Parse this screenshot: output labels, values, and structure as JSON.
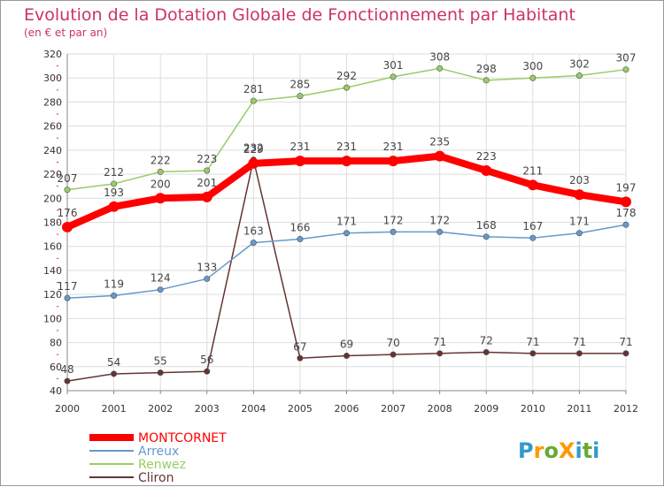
{
  "chart_data": {
    "type": "line",
    "title": "Evolution de la Dotation Globale de Fonctionnement par Habitant",
    "subtitle": "(en € et par an)",
    "x": [
      "2000",
      "2001",
      "2002",
      "2003",
      "2004",
      "2005",
      "2006",
      "2007",
      "2008",
      "2009",
      "2010",
      "2011",
      "2012"
    ],
    "ylim": [
      40,
      320
    ],
    "yticks": [
      40,
      60,
      80,
      100,
      120,
      140,
      160,
      180,
      200,
      220,
      240,
      260,
      280,
      300,
      320
    ],
    "grid": true,
    "legend_position": "bottom-left",
    "series": [
      {
        "name": "MONTCORNET",
        "color": "#ff0000",
        "values": [
          176,
          193,
          200,
          201,
          229,
          231,
          231,
          231,
          235,
          223,
          211,
          203,
          197
        ]
      },
      {
        "name": "Arreux",
        "color": "#6699cc",
        "values": [
          117,
          119,
          124,
          133,
          163,
          166,
          171,
          172,
          172,
          168,
          167,
          171,
          178
        ]
      },
      {
        "name": "Renwez",
        "color": "#99cc66",
        "values": [
          207,
          212,
          222,
          223,
          281,
          285,
          292,
          301,
          308,
          298,
          300,
          302,
          307
        ]
      },
      {
        "name": "Cliron",
        "color": "#663333",
        "values": [
          48,
          54,
          55,
          56,
          232,
          67,
          69,
          70,
          71,
          72,
          71,
          71,
          71
        ]
      }
    ]
  },
  "logo": {
    "text": "ProXiti",
    "letters": [
      "P",
      "r",
      "o",
      "X",
      "i",
      "t",
      "i"
    ],
    "colors": [
      "#3399cc",
      "#ff9900",
      "#66aa33",
      "#ff9900",
      "#3399cc",
      "#66aa33",
      "#3399cc"
    ]
  }
}
